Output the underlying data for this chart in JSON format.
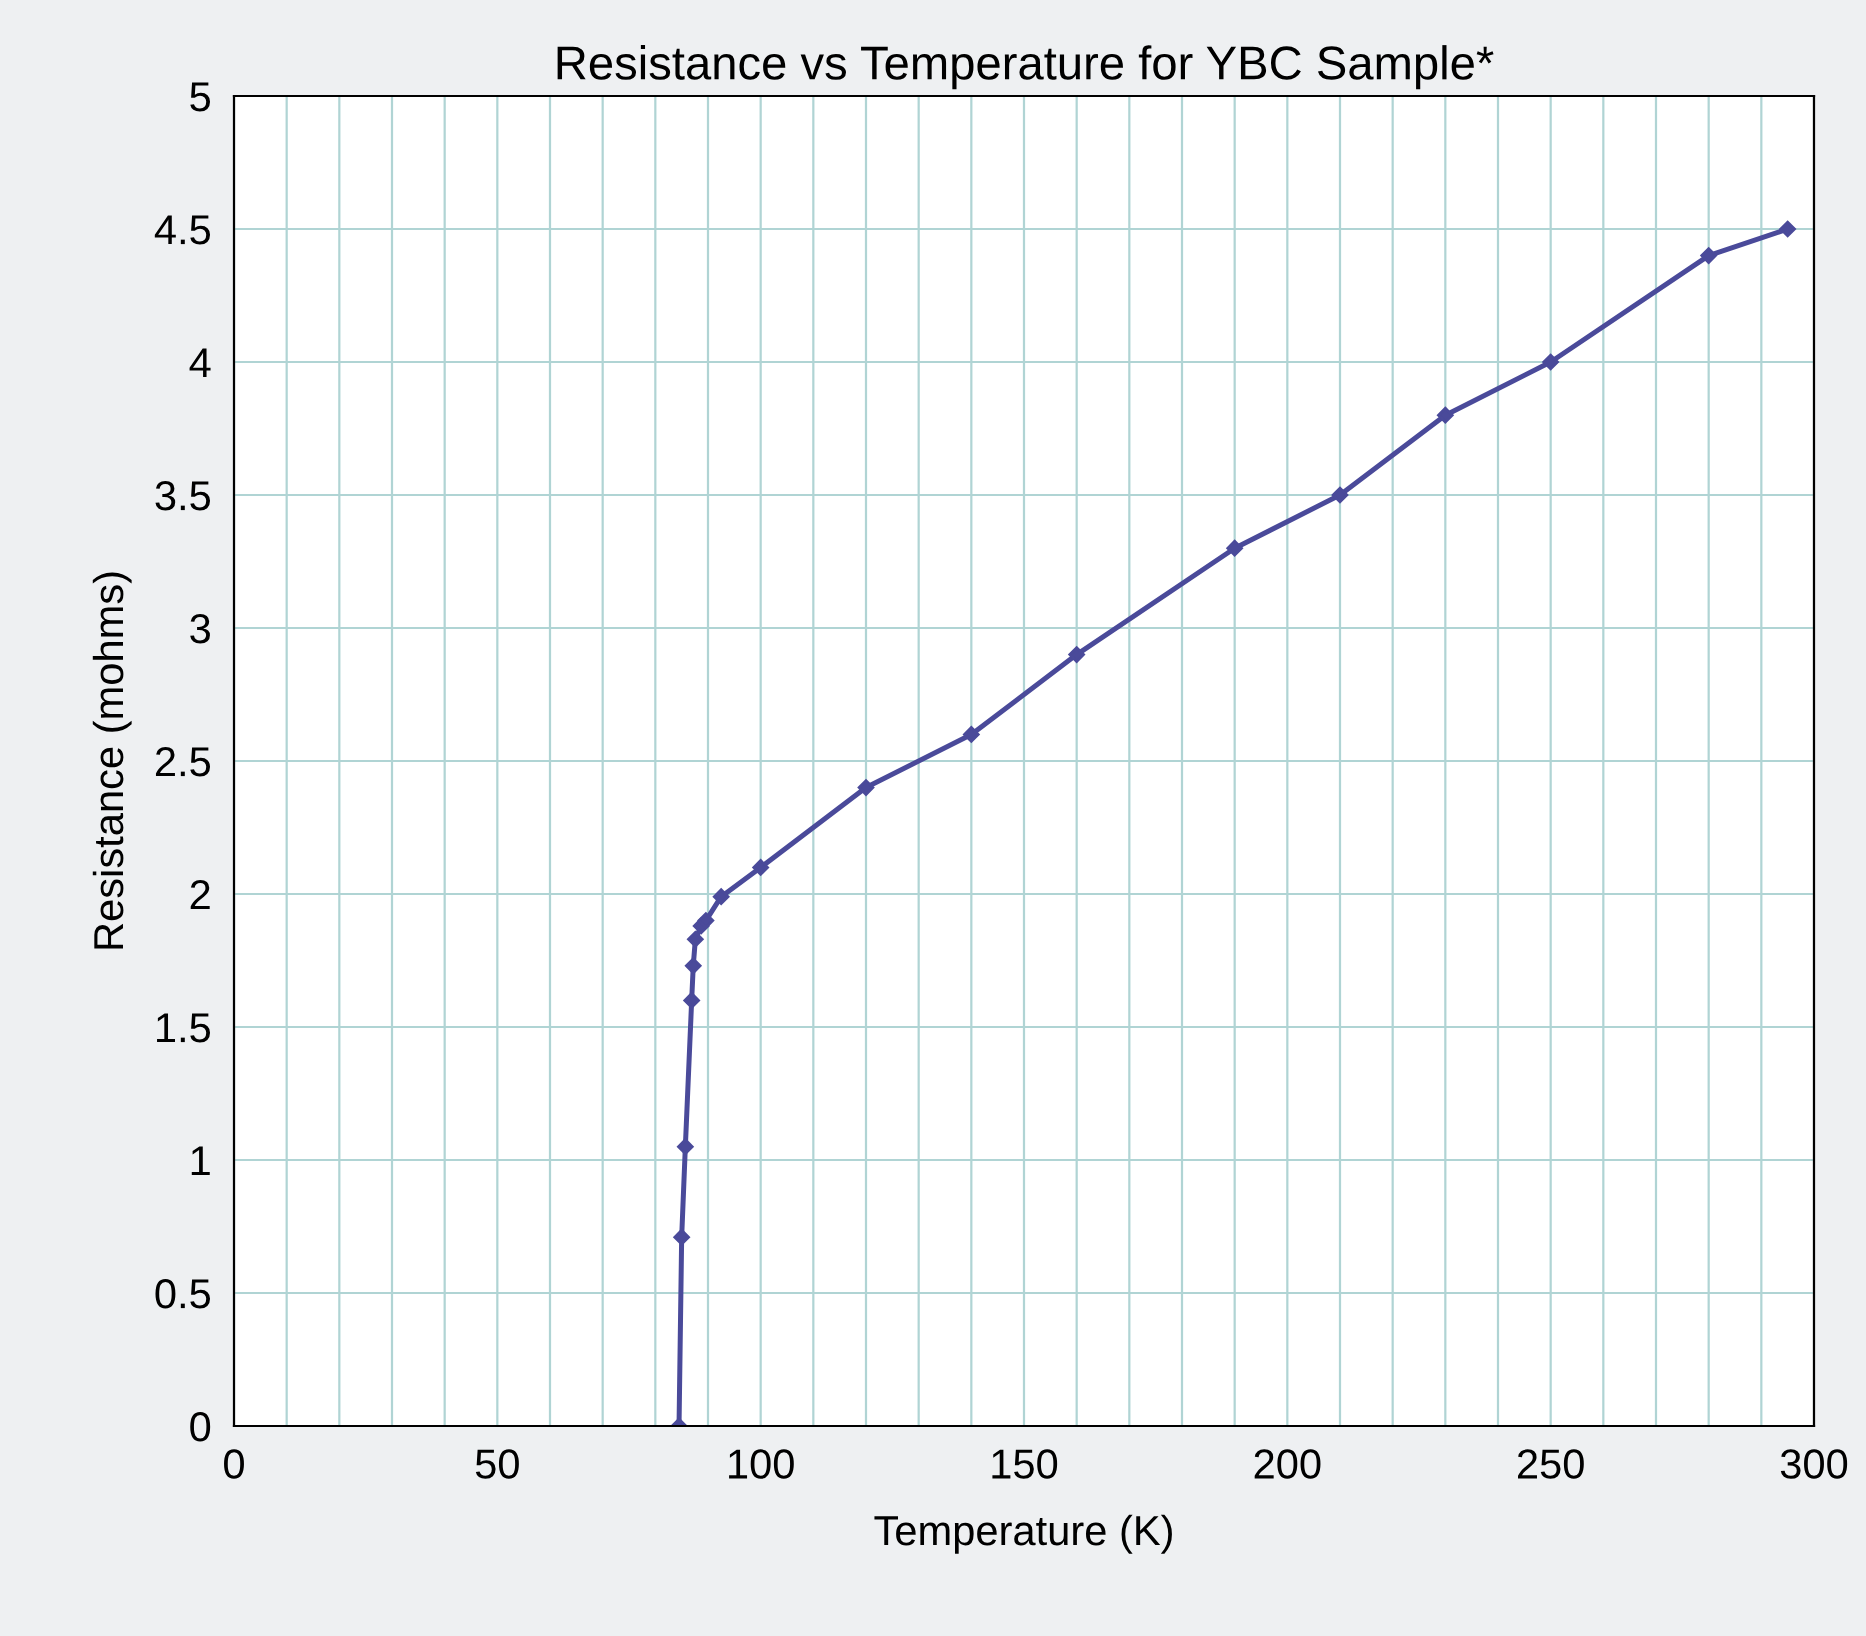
{
  "chart_data": {
    "type": "line",
    "title": "Resistance vs Temperature for YBC Sample*",
    "xlabel": "Temperature (K)",
    "ylabel": "Resistance (mohms)",
    "x": [
      84.5,
      85,
      85.7,
      86.9,
      87.2,
      87.6,
      88.7,
      89.6,
      92.5,
      100,
      120,
      140,
      160,
      190,
      210,
      230,
      250,
      280,
      295
    ],
    "series": [
      {
        "color": "#4a4a9a",
        "values": [
          0,
          0.71,
          1.05,
          1.6,
          1.73,
          1.83,
          1.88,
          1.9,
          1.99,
          2.1,
          2.4,
          2.6,
          2.9,
          3.3,
          3.5,
          3.8,
          4.0,
          4.4,
          4.5
        ]
      }
    ],
    "xlim": [
      0,
      300
    ],
    "ylim": [
      0,
      5
    ],
    "xticks": [
      0,
      {
        "value": 10,
        "label": null
      },
      {
        "value": 20,
        "label": null
      },
      {
        "value": 30,
        "label": null
      },
      {
        "value": 40,
        "label": null
      },
      50,
      {
        "value": 60,
        "label": null
      },
      {
        "value": 70,
        "label": null
      },
      {
        "value": 80,
        "label": null
      },
      {
        "value": 90,
        "label": null
      },
      100,
      {
        "value": 110,
        "label": null
      },
      {
        "value": 120,
        "label": null
      },
      {
        "value": 130,
        "label": null
      },
      {
        "value": 140,
        "label": null
      },
      150,
      {
        "value": 160,
        "label": null
      },
      {
        "value": 170,
        "label": null
      },
      {
        "value": 180,
        "label": null
      },
      {
        "value": 190,
        "label": null
      },
      200,
      {
        "value": 210,
        "label": null
      },
      {
        "value": 220,
        "label": null
      },
      {
        "value": 230,
        "label": null
      },
      {
        "value": 240,
        "label": null
      },
      250,
      {
        "value": 260,
        "label": null
      },
      {
        "value": 270,
        "label": null
      },
      {
        "value": 280,
        "label": null
      },
      {
        "value": 290,
        "label": null
      },
      300
    ],
    "yticks": [
      0,
      0.5,
      1,
      1.5,
      2,
      2.5,
      3,
      3.5,
      4,
      4.5,
      5
    ],
    "grid": true,
    "marker": "diamond",
    "line_style": "solid"
  }
}
